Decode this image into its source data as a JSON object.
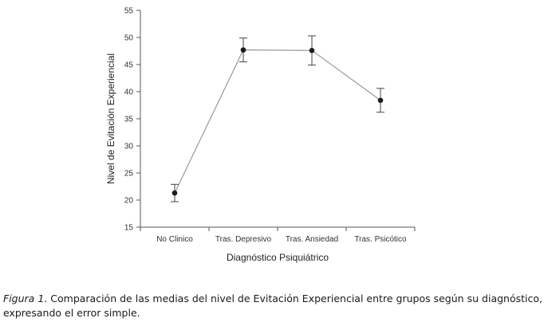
{
  "chart_data": {
    "type": "line",
    "title": "",
    "xlabel": "Diagnóstico Psiquiátrico",
    "ylabel": "Nivel de Evitación Experiencial",
    "categories": [
      "No Clinico",
      "Tras. Depresivo",
      "Tras. Ansiedad",
      "Tras. Psicótico"
    ],
    "series": [
      {
        "values": [
          21.3,
          47.7,
          47.6,
          38.4
        ],
        "error": [
          1.6,
          2.2,
          2.7,
          2.2
        ]
      }
    ],
    "ylim": [
      15,
      55
    ],
    "yticks": [
      15,
      20,
      25,
      30,
      35,
      40,
      45,
      50,
      55
    ],
    "grid": false,
    "legend": "none",
    "colors": {
      "line": "#999999",
      "marker": "#1a1a1a",
      "errorbar": "#444444",
      "axis": "#555555"
    }
  },
  "caption": {
    "label": "Figura 1",
    "text": ". Comparación de las medias del nivel de Evitación Experiencial entre grupos según su diagnóstico, expresando el error simple."
  }
}
